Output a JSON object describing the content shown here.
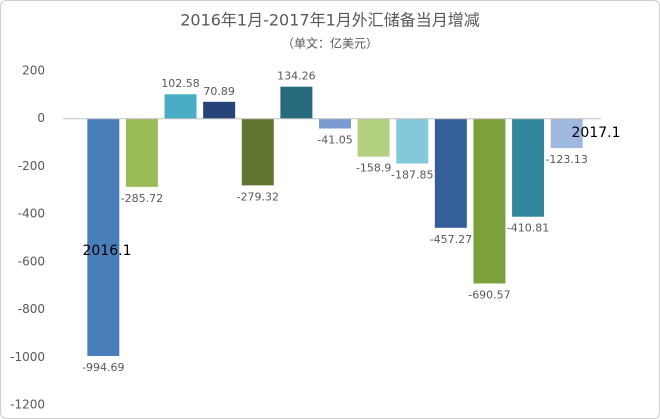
{
  "chart_data": {
    "type": "bar",
    "title": "2016年1月-2017年1月外汇储备当月增减",
    "subtitle": "（单文：亿美元）",
    "categories": [
      null,
      null,
      null,
      null,
      null,
      null,
      null,
      null,
      null,
      null,
      null,
      null,
      null
    ],
    "values": [
      -994.69,
      -285.72,
      102.58,
      70.89,
      -279.32,
      134.26,
      -41.05,
      -158.9,
      -187.85,
      -457.27,
      -690.57,
      -410.81,
      -123.13
    ],
    "colors": [
      "#4a7ebb",
      "#9bbb59",
      "#4bacc6",
      "#264478",
      "#5f7530",
      "#276a7c",
      "#7a9cd0",
      "#b3cf80",
      "#82c9d9",
      "#355f9a",
      "#7ba03c",
      "#31859c",
      "#a0b8dd"
    ],
    "annotations": [
      "2016.1",
      "2017.1"
    ],
    "ylim": [
      -1200,
      200
    ],
    "yticks": [
      -1200,
      -1000,
      -800,
      -600,
      -400,
      -200,
      0,
      200
    ],
    "grid": false
  }
}
